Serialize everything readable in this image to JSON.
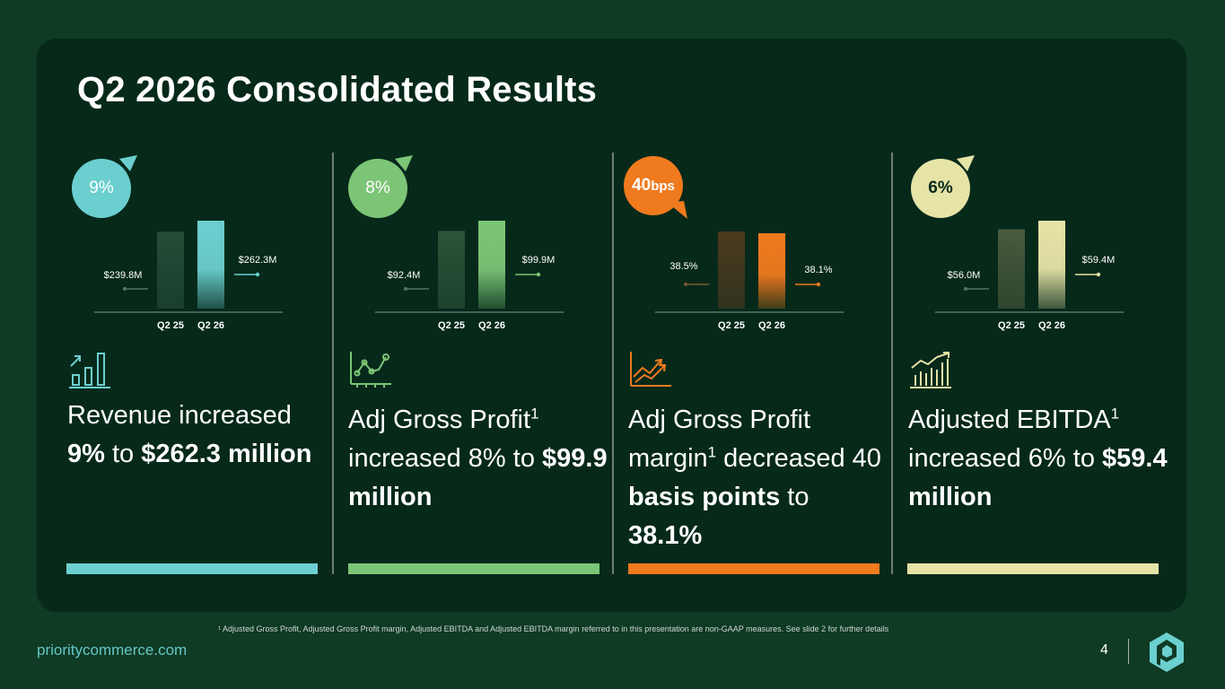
{
  "title": "Q2 2026 Consolidated Results",
  "footnote": "¹ Adjusted Gross Profit, Adjusted Gross Profit margin, Adjusted EBITDA and Adjusted EBITDA margin referred to in this presentation are non-GAAP measures. See slide 2 for further details",
  "website": "prioritycommerce.com",
  "page_number": "4",
  "panels": [
    {
      "badge_value": "9%",
      "badge_unit": "",
      "direction": "up",
      "color": "#6ccfcf",
      "prior_color": "#264c38",
      "headline_pre": "Revenue increased ",
      "headline_bold1": "9%",
      "headline_mid": " to ",
      "headline_bold2": "$262.3 million",
      "headline_post": "",
      "icon": "bar-chart-up-icon",
      "chart_data": {
        "type": "bar",
        "categories": [
          "Q2 25",
          "Q2 26"
        ],
        "values": [
          239.8,
          262.3
        ],
        "labels": [
          "$239.8M",
          "$262.3M"
        ]
      }
    },
    {
      "badge_value": "8%",
      "badge_unit": "",
      "direction": "up",
      "color": "#7cc576",
      "prior_color": "#2b5439",
      "headline_pre": "Adj Gross Profit",
      "headline_sup": "1",
      "headline_mid": " increased 8% to ",
      "headline_bold2": "$99.9 million",
      "icon": "line-chart-icon",
      "chart_data": {
        "type": "bar",
        "categories": [
          "Q2 25",
          "Q2 26"
        ],
        "values": [
          92.4,
          99.9
        ],
        "labels": [
          "$92.4M",
          "$99.9M"
        ]
      }
    },
    {
      "badge_value": "40",
      "badge_unit": "bps",
      "direction": "down",
      "color": "#f07a1e",
      "prior_color": "#4d3a1e",
      "headline_pre": "Adj Gross Profit margin",
      "headline_sup": "1",
      "headline_mid": " decreased 40 ",
      "headline_bold1": "basis points",
      "headline_mid2": " to ",
      "headline_bold2": "38.1%",
      "icon": "trend-arrows-icon",
      "chart_data": {
        "type": "bar",
        "categories": [
          "Q2 25",
          "Q2 26"
        ],
        "values": [
          38.5,
          38.1
        ],
        "labels": [
          "38.5%",
          "38.1%"
        ]
      }
    },
    {
      "badge_value": "6%",
      "badge_unit": "",
      "direction": "up",
      "color": "#e6e3a6",
      "prior_color": "#4a5a3d",
      "headline_pre": "Adjusted EBITDA",
      "headline_sup": "1",
      "headline_mid": " increased 6% to ",
      "headline_bold2": "$59.4 million",
      "icon": "growth-bars-icon",
      "chart_data": {
        "type": "bar",
        "categories": [
          "Q2 25",
          "Q2 26"
        ],
        "values": [
          56.0,
          59.4
        ],
        "labels": [
          "$56.0M",
          "$59.4M"
        ]
      }
    }
  ]
}
